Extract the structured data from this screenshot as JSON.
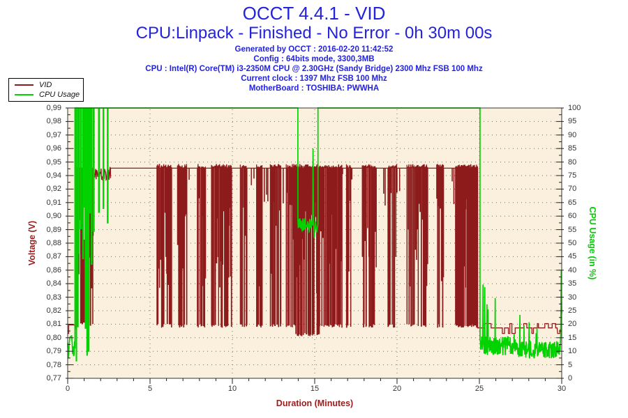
{
  "header": {
    "title": "OCCT 4.4.1 - VID",
    "subtitle": "CPU:Linpack - Finished - No Error - 0h 30m 00s",
    "title_color": "#2323dd",
    "info_lines": [
      "Generated by OCCT : 2016-02-20 11:42:52",
      "Config : 64bits mode, 3300,3MB",
      "CPU : Intel(R) Core(TM) i3-2350M CPU @ 2.30GHz (Sandy Bridge) 2300 Mhz FSB 100 Mhz",
      "Current clock : 1397 Mhz FSB 100 Mhz",
      "MotherBoard : TOSHIBA: PWWHA"
    ]
  },
  "legend": {
    "items": [
      {
        "label": "VID",
        "color": "#8e1b1b"
      },
      {
        "label": "CPU Usage",
        "color": "#00d300"
      }
    ]
  },
  "chart_data": {
    "type": "line",
    "title": "OCCT 4.4.1 - VID",
    "subtitle": "CPU:Linpack - Finished - No Error - 0h 30m 00s",
    "plot_bg": "#faf0dd",
    "grid": {
      "style": "dotted",
      "color": "#6f6f6f"
    },
    "legend_position": "top-left",
    "seed": 20160220,
    "x": {
      "label": "Duration (Minutes)",
      "label_color": "#9a1c1c",
      "min": 0,
      "max": 30,
      "major_ticks": [
        0,
        5,
        10,
        15,
        20,
        25,
        30
      ],
      "tick_labels": [
        "0",
        "5",
        "10",
        "15",
        "20",
        "25",
        "30"
      ],
      "minor_step": 1
    },
    "y_left": {
      "label": "Voltage (V)",
      "label_color": "#9a1c1c",
      "min": 0.77,
      "max": 0.99,
      "tick_labels_top_to_bottom": [
        "0,99",
        "0,98",
        "0,97",
        "0,96",
        "0,95",
        "0,94",
        "0,92",
        "0,91",
        "0,90",
        "0,89",
        "0,88",
        "0,87",
        "0,86",
        "0,84",
        "0,83",
        "0,82",
        "0,81",
        "0,80",
        "0,79",
        "0,78",
        "0,77"
      ]
    },
    "y_right": {
      "label": "CPU Usage (in %)",
      "label_color": "#00cc00",
      "min": 0,
      "max": 100,
      "tick_labels_top_to_bottom": [
        "100",
        "95",
        "90",
        "85",
        "80",
        "75",
        "70",
        "65",
        "60",
        "55",
        "50",
        "45",
        "40",
        "35",
        "30",
        "25",
        "20",
        "15",
        "10",
        "5",
        "0"
      ]
    },
    "series": [
      {
        "name": "VID",
        "axis": "left",
        "color": "#8e1b1b",
        "stroke_width": 1.3,
        "summary": "VID idles at 0.813V, oscillates 0.81-0.94V during load ramp (0.5-2.6min), holds 0.941V with dense downward spikes to 0.811V during Linpack load (5.4-24.9min), returns to ~0.81V idle after 25min",
        "segments": [
          {
            "type": "points",
            "pts": [
              [
                0,
                0.8065
              ],
              [
                0.06,
                0.8065
              ],
              [
                0.06,
                0.8135
              ],
              [
                0.42,
                0.8135
              ],
              [
                0.45,
                0.8095
              ],
              [
                0.5,
                0.8135
              ]
            ]
          },
          {
            "type": "osc",
            "t": [
              0.5,
              1.55
            ],
            "hi": 0.941,
            "hiDropP": 0.5,
            "hiVar": 0.07,
            "dwellHi": [
              0.01,
              0.06
            ],
            "dwellLo": [
              0.008,
              0.05
            ],
            "loChoices": [
              {
                "p": 0.6,
                "range": [
                  0.8115,
                  0.816
                ]
              },
              {
                "p": 0.4,
                "range": [
                  0.84,
                  0.9
                ]
              }
            ]
          },
          {
            "type": "noise",
            "t": [
              1.55,
              2.6
            ],
            "base": 0.937,
            "amp": 0.006,
            "step": 0.03
          },
          {
            "type": "flat",
            "t": [
              2.6,
              5.42
            ],
            "v": 0.941
          },
          {
            "type": "spikes",
            "t": [
              5.42,
              13.85
            ],
            "base": 0.941,
            "lo": 0.8115,
            "density": 0.6,
            "cluster": true
          },
          {
            "type": "spikes",
            "t": [
              13.85,
              15.3
            ],
            "base": 0.941,
            "lo": 0.8045,
            "density": 0.85,
            "cluster": false
          },
          {
            "type": "spikes",
            "t": [
              15.3,
              23.55
            ],
            "base": 0.941,
            "lo": 0.8115,
            "density": 0.55,
            "cluster": true
          },
          {
            "type": "spikes",
            "t": [
              23.55,
              24.9
            ],
            "base": 0.941,
            "lo": 0.8115,
            "density": 0.95,
            "cluster": false
          },
          {
            "type": "walk",
            "t": [
              24.9,
              29.72
            ],
            "levels": [
              0.8065,
              0.811,
              0.8145
            ],
            "dwell": [
              0.05,
              0.3
            ],
            "mainIndex": 1,
            "stayP": 0.55
          },
          {
            "type": "points",
            "pts": [
              [
                29.72,
                0.811
              ],
              [
                29.75,
                0.8065
              ],
              [
                29.88,
                0.8065
              ],
              [
                29.9,
                0.8095
              ],
              [
                30,
                0.8095
              ]
            ]
          }
        ]
      },
      {
        "name": "CPU Usage",
        "axis": "right",
        "color": "#00d300",
        "stroke_width": 1.7,
        "summary": "CPU usage ~11% idle, oscillates 5-100% during ramp (0.45-2.6min), pegged at 100% during test with a dip to ~55% at 14-15.2min, falls to ~10-15% after 25min with decaying spikes to 41%, final spike to 40% at 30min",
        "segments": [
          {
            "type": "noise",
            "t": [
              0,
              0.44
            ],
            "base": 11,
            "amp": 5,
            "step": 0.03
          },
          {
            "type": "osc",
            "t": [
              0.44,
              1.6
            ],
            "hi": 100,
            "hiDropP": 0,
            "hiVar": 0,
            "dwellHi": [
              0.02,
              0.1
            ],
            "dwellLo": [
              0.015,
              0.07
            ],
            "loChoices": [
              {
                "p": 0.45,
                "range": [
                  5,
                  25
                ]
              },
              {
                "p": 0.55,
                "range": [
                  40,
                  68
                ]
              }
            ]
          },
          {
            "type": "osc",
            "t": [
              1.6,
              2.65
            ],
            "hi": 100,
            "hiDropP": 0,
            "hiVar": 0,
            "dwellHi": [
              0.12,
              0.3
            ],
            "dwellLo": [
              0.01,
              0.04
            ],
            "loChoices": [
              {
                "p": 1,
                "range": [
                  48,
                  65
                ]
              }
            ]
          },
          {
            "type": "flat",
            "t": [
              2.65,
              13.98
            ],
            "v": 100
          },
          {
            "type": "noise",
            "t": [
              13.98,
              14.86
            ],
            "base": 56.5,
            "amp": 2.8,
            "step": 0.02
          },
          {
            "type": "points",
            "pts": [
              [
                14.88,
                57
              ],
              [
                14.9,
                85
              ],
              [
                14.93,
                60
              ],
              [
                14.97,
                52
              ],
              [
                15.05,
                58
              ],
              [
                15.12,
                54
              ],
              [
                15.2,
                57
              ]
            ]
          },
          {
            "type": "flat",
            "t": [
              15.2,
              25.04
            ],
            "v": 100
          },
          {
            "type": "noise",
            "t": [
              25.04,
              27.2
            ],
            "base": 12,
            "amp": 3.5,
            "step": 0.02,
            "burst": {
              "max": 41,
              "prob": 0.1
            }
          },
          {
            "type": "noise",
            "t": [
              27.2,
              29.9
            ],
            "base": 10.5,
            "amp": 3.2,
            "step": 0.02,
            "burst": {
              "max": 25,
              "prob": 0.03
            }
          },
          {
            "type": "points",
            "pts": [
              [
                29.9,
                10
              ],
              [
                29.94,
                16
              ],
              [
                29.97,
                40
              ],
              [
                30,
                24
              ]
            ]
          }
        ]
      }
    ]
  }
}
